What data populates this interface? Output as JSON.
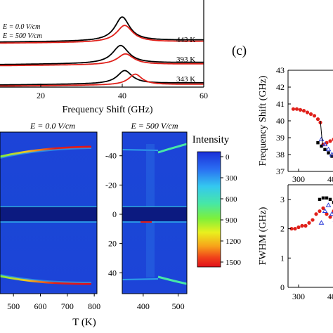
{
  "colors": {
    "field0": "#000000",
    "field500": "#e0201a",
    "blue_marker": "#2a3ad8",
    "map_bg": "#1a3fd6"
  },
  "panel_a": {
    "legend": [
      "E = 0.0 V/cm",
      "E = 500 V/cm"
    ],
    "temps": [
      "443 K",
      "393 K",
      "343 K"
    ],
    "xlabel": "Frequency Shift (GHz)",
    "xticks": [
      "20",
      "40",
      "60"
    ]
  },
  "panel_b": {
    "left_title": "E = 0.0 V/cm",
    "right_title": "E = 500 V/cm",
    "yticks": [
      "-40",
      "-20",
      "0",
      "20",
      "40"
    ],
    "left_xticks": [
      "500",
      "600",
      "700",
      "800"
    ],
    "right_xticks": [
      "400",
      "500"
    ],
    "xlabel": "T (K)",
    "colorbar": {
      "title": "Intensity",
      "ticks": [
        "0",
        "300",
        "600",
        "900",
        "1200",
        "1500"
      ]
    }
  },
  "panel_c": {
    "label": "(c)",
    "top_ylabel": "Frequency Shift (GHz)",
    "top_yticks": [
      "43",
      "42",
      "41",
      "40",
      "39",
      "38",
      "37"
    ],
    "bottom_ylabel": "FWHM (GHz)",
    "bottom_yticks": [
      "3",
      "2",
      "1",
      "0"
    ],
    "xticks": [
      "300",
      "400"
    ],
    "xticks_top": [
      "300",
      "400"
    ]
  },
  "chart_data": [
    {
      "type": "line",
      "panel": "a",
      "xlabel": "Frequency Shift (GHz)",
      "xlim": [
        10,
        60
      ],
      "series": [
        {
          "name": "E = 0.0 V/cm",
          "traces": [
            {
              "temperature": "443 K",
              "peak_x": 40.0,
              "width": 2.2,
              "height": 1.0
            },
            {
              "temperature": "393 K",
              "peak_x": 39.6,
              "width": 2.4,
              "height": 0.75
            },
            {
              "temperature": "343 K",
              "peak_x": 40.6,
              "width": 2.2,
              "height": 0.55
            }
          ]
        },
        {
          "name": "E = 500 V/cm",
          "traces": [
            {
              "temperature": "443 K",
              "peak_x": 40.6,
              "width": 2.4,
              "height": 0.7
            },
            {
              "temperature": "393 K",
              "peak_x": 40.8,
              "width": 2.4,
              "height": 0.45
            },
            {
              "temperature": "343 K",
              "peak_x": 43.2,
              "width": 2.0,
              "height": 0.45
            }
          ]
        }
      ]
    },
    {
      "type": "heatmap",
      "panel": "b",
      "xlabel": "T (K)",
      "colorbar_range": [
        0,
        1500
      ],
      "left_map": {
        "title": "E = 0.0 V/cm",
        "xlim": [
          450,
          810
        ],
        "ylim": [
          -55,
          55
        ]
      },
      "right_map": {
        "title": "E = 500 V/cm",
        "xlim": [
          340,
          525
        ],
        "ylim": [
          -55,
          55
        ]
      }
    },
    {
      "type": "scatter",
      "panel": "c-top",
      "ylabel": "Frequency Shift (GHz)",
      "xlim": [
        270,
        460
      ],
      "ylim": [
        37,
        43
      ],
      "series": [
        {
          "name": "red",
          "x": [
            285,
            295,
            305,
            315,
            325,
            335,
            345,
            355,
            362,
            370,
            380,
            390,
            400,
            410,
            420,
            430,
            440,
            450
          ],
          "y": [
            40.7,
            40.7,
            40.65,
            40.6,
            40.5,
            40.4,
            40.3,
            40.1,
            39.9,
            38.6,
            38.7,
            38.8,
            38.9,
            38.8,
            38.7,
            38.6,
            38.5,
            38.4
          ]
        },
        {
          "name": "black",
          "x": [
            355,
            365,
            375,
            385,
            395,
            405,
            415,
            425
          ],
          "y": [
            38.7,
            38.5,
            38.3,
            38.1,
            37.9,
            37.8,
            37.9,
            38.2
          ]
        },
        {
          "name": "blue",
          "x": [
            365,
            375,
            385,
            395,
            405,
            415,
            425,
            435
          ],
          "y": [
            38.9,
            38.6,
            38.3,
            38.0,
            37.8,
            37.8,
            38.0,
            38.3
          ]
        }
      ]
    },
    {
      "type": "scatter",
      "panel": "c-bottom",
      "ylabel": "FWHM (GHz)",
      "xlim": [
        270,
        460
      ],
      "ylim": [
        0,
        3.5
      ],
      "series": [
        {
          "name": "red",
          "x": [
            280,
            290,
            300,
            310,
            320,
            330,
            340,
            350,
            360,
            370,
            380,
            390,
            400,
            410,
            420,
            430,
            440,
            450
          ],
          "y": [
            2.0,
            2.0,
            2.05,
            2.1,
            2.1,
            2.2,
            2.3,
            2.5,
            2.6,
            2.7,
            2.5,
            2.4,
            2.6,
            2.5,
            2.7,
            2.6,
            2.5,
            2.6
          ]
        },
        {
          "name": "black",
          "x": [
            360,
            370,
            380,
            390,
            400,
            410
          ],
          "y": [
            3.0,
            3.05,
            3.05,
            3.0,
            2.9,
            2.7
          ]
        },
        {
          "name": "blue",
          "x": [
            365,
            375,
            385,
            395,
            405,
            415,
            425,
            435
          ],
          "y": [
            2.2,
            2.6,
            2.8,
            2.5,
            2.3,
            2.8,
            2.5,
            2.4
          ]
        }
      ]
    }
  ]
}
